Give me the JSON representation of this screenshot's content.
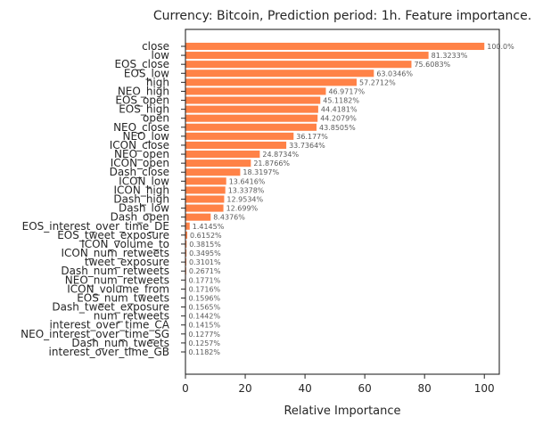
{
  "chart_data": {
    "type": "bar",
    "orientation": "horizontal",
    "title": "Currency: Bitcoin, Prediction period: 1h. Feature importance.",
    "xlabel": "Relative Importance",
    "ylabel": "",
    "xlim": [
      0,
      105
    ],
    "xticks": [
      "0",
      "20",
      "40",
      "60",
      "80",
      "100"
    ],
    "xtick_values": [
      0,
      20,
      40,
      60,
      80,
      100
    ],
    "bar_color": "#FF8247",
    "grid": false,
    "categories": [
      "close",
      "low",
      "EOS_close",
      "EOS_low",
      "high",
      "NEO_high",
      "EOS_open",
      "EOS_high",
      "open",
      "NEO_close",
      "NEO_low",
      "ICON_close",
      "NEO_open",
      "ICON_open",
      "Dash_close",
      "ICON_low",
      "ICON_high",
      "Dash_high",
      "Dash_low",
      "Dash_open",
      "EOS_interest_over_time_DE",
      "EOS_tweet_exposure",
      "ICON_volume_to",
      "ICON_num_retweets",
      "tweet_exposure",
      "Dash_num_retweets",
      "NEO_num_retweets",
      "ICON_volume_from",
      "EOS_num_tweets",
      "Dash_tweet_exposure",
      "num_retweets",
      "interest_over_time_CA",
      "NEO_interest_over_time_SG",
      "Dash_num_tweets",
      "interest_over_time_GB"
    ],
    "values": [
      100.0,
      81.3233,
      75.6083,
      63.0346,
      57.2712,
      46.9717,
      45.1182,
      44.4181,
      44.2079,
      43.8505,
      36.177,
      33.7364,
      24.8734,
      21.8766,
      18.3197,
      13.6416,
      13.3378,
      12.9534,
      12.699,
      8.4376,
      1.4145,
      0.6152,
      0.3815,
      0.3495,
      0.3101,
      0.2671,
      0.1771,
      0.1716,
      0.1596,
      0.1565,
      0.1442,
      0.1415,
      0.1277,
      0.1257,
      0.1182
    ],
    "value_labels": [
      "100.0%",
      "81.3233%",
      "75.6083%",
      "63.0346%",
      "57.2712%",
      "46.9717%",
      "45.1182%",
      "44.4181%",
      "44.2079%",
      "43.8505%",
      "36.177%",
      "33.7364%",
      "24.8734%",
      "21.8766%",
      "18.3197%",
      "13.6416%",
      "13.3378%",
      "12.9534%",
      "12.699%",
      "8.4376%",
      "1.4145%",
      "0.6152%",
      "0.3815%",
      "0.3495%",
      "0.3101%",
      "0.2671%",
      "0.1771%",
      "0.1716%",
      "0.1596%",
      "0.1565%",
      "0.1442%",
      "0.1415%",
      "0.1277%",
      "0.1257%",
      "0.1182%"
    ]
  }
}
